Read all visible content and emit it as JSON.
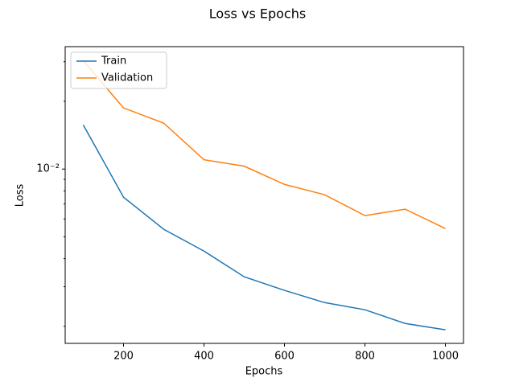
{
  "chart_data": {
    "type": "line",
    "title": "Loss vs Epochs",
    "x_label": "Epochs",
    "y_label": "Loss",
    "x": [
      100,
      200,
      300,
      400,
      500,
      600,
      700,
      800,
      900,
      1000
    ],
    "series": [
      {
        "name": "Train",
        "color": "#1f77b4",
        "values": [
          0.0157,
          0.0075,
          0.0054,
          0.00432,
          0.00332,
          0.00289,
          0.00255,
          0.00237,
          0.00206,
          0.00193
        ]
      },
      {
        "name": "Validation",
        "color": "#ff7f0e",
        "values": [
          0.0303,
          0.0187,
          0.016,
          0.011,
          0.0103,
          0.00855,
          0.00769,
          0.00621,
          0.00663,
          0.00544
        ]
      }
    ],
    "xlim": [
      55,
      1045
    ],
    "xticks": [
      200,
      400,
      600,
      800,
      1000
    ],
    "ylim": [
      0.00168,
      0.035
    ],
    "yscale": "log",
    "yticks": [
      {
        "value": 0.01,
        "label": "10⁻²"
      }
    ],
    "yminorticks": [
      0.002,
      0.003,
      0.004,
      0.005,
      0.006,
      0.007,
      0.008,
      0.009,
      0.02,
      0.03
    ],
    "legend": "upper left"
  }
}
